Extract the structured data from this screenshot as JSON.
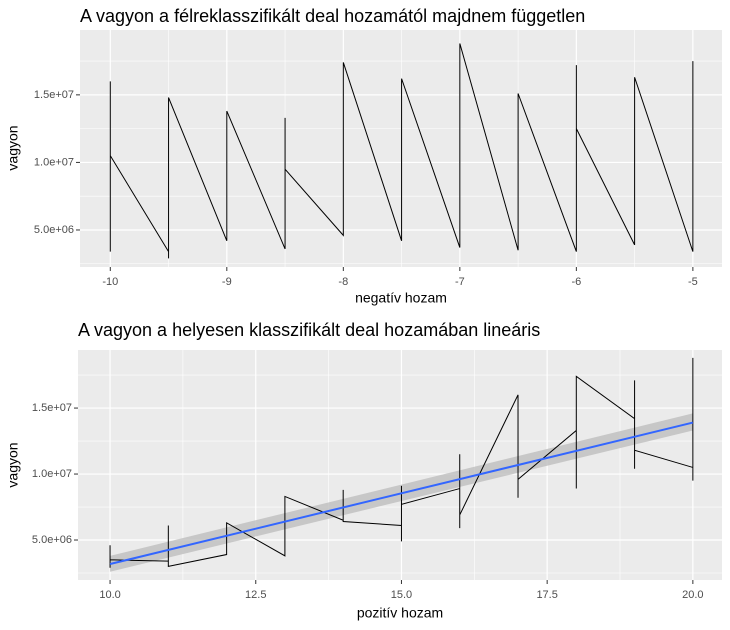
{
  "chart_data": [
    {
      "type": "line",
      "title": "A vagyon a félreklasszifikált deal hozamától majdnem független",
      "x_label": "negatív hozam",
      "y_label": "vagyon",
      "color": "#000000",
      "panel_color": "#ebebeb",
      "grid": true,
      "x": [
        -10,
        -10,
        -10,
        -9.5,
        -9.5,
        -9.5,
        -9,
        -9,
        -8.5,
        -8.5,
        -8.5,
        -8,
        -8,
        -7.5,
        -7.5,
        -7,
        -7,
        -6.5,
        -6.5,
        -6,
        -6,
        -6,
        -5.5,
        -5.5,
        -5,
        -5
      ],
      "values": [
        16000000,
        3400000,
        10500000,
        3400000,
        2900000,
        14800000,
        4200000,
        13800000,
        3600000,
        13300000,
        9500000,
        4600000,
        17400000,
        4200000,
        16200000,
        3700000,
        18800000,
        3500000,
        15100000,
        3400000,
        17200000,
        12500000,
        3900000,
        16300000,
        3400000,
        17500000
      ],
      "xlim": [
        -10.26,
        -4.75
      ],
      "ylim": [
        2260000,
        19800000
      ],
      "xticks": [
        -10,
        -9,
        -8,
        -7,
        -6,
        -5
      ],
      "yticks": [
        {
          "value": 5000000,
          "label": "5.0e+06"
        },
        {
          "value": 10000000,
          "label": "1.0e+07"
        },
        {
          "value": 15000000,
          "label": "1.5e+07"
        }
      ]
    },
    {
      "type": "line",
      "title": "A vagyon a helyesen klasszifikált deal hozamában lineáris",
      "x_label": "pozitív hozam",
      "y_label": "vagyon",
      "color": "#000000",
      "panel_color": "#ebebeb",
      "grid": true,
      "x": [
        10,
        10,
        10,
        11,
        11,
        11,
        12,
        12,
        13,
        13,
        14,
        14,
        14,
        15,
        15,
        15,
        15,
        16,
        16,
        16,
        16,
        17,
        17,
        17,
        18,
        18,
        18,
        19,
        19,
        19,
        19,
        20,
        20,
        20
      ],
      "values": [
        4600000,
        2900000,
        3500000,
        3400000,
        6100000,
        3000000,
        3900000,
        6300000,
        3800000,
        8300000,
        6500000,
        8800000,
        6400000,
        6100000,
        4900000,
        9100000,
        7700000,
        8900000,
        11500000,
        5900000,
        6900000,
        16000000,
        8200000,
        9600000,
        13300000,
        8900000,
        17400000,
        14200000,
        17100000,
        10400000,
        11800000,
        10500000,
        9500000,
        18800000
      ],
      "fit": {
        "x": [
          10,
          20
        ],
        "values": [
          3180000,
          13900000
        ],
        "lower": [
          2600000,
          13300000
        ],
        "upper": [
          3800000,
          14600000
        ],
        "color": "#3366ff",
        "band_color": "#bebebe"
      },
      "xlim": [
        9.45,
        20.5
      ],
      "ylim": [
        1970000,
        19400000
      ],
      "xticks": [
        {
          "value": 10,
          "label": "10.0"
        },
        {
          "value": 12.5,
          "label": "12.5"
        },
        {
          "value": 15,
          "label": "15.0"
        },
        {
          "value": 17.5,
          "label": "17.5"
        },
        {
          "value": 20,
          "label": "20.0"
        }
      ],
      "yticks": [
        {
          "value": 5000000,
          "label": "5.0e+06"
        },
        {
          "value": 10000000,
          "label": "1.0e+07"
        },
        {
          "value": 15000000,
          "label": "1.5e+07"
        }
      ]
    }
  ]
}
